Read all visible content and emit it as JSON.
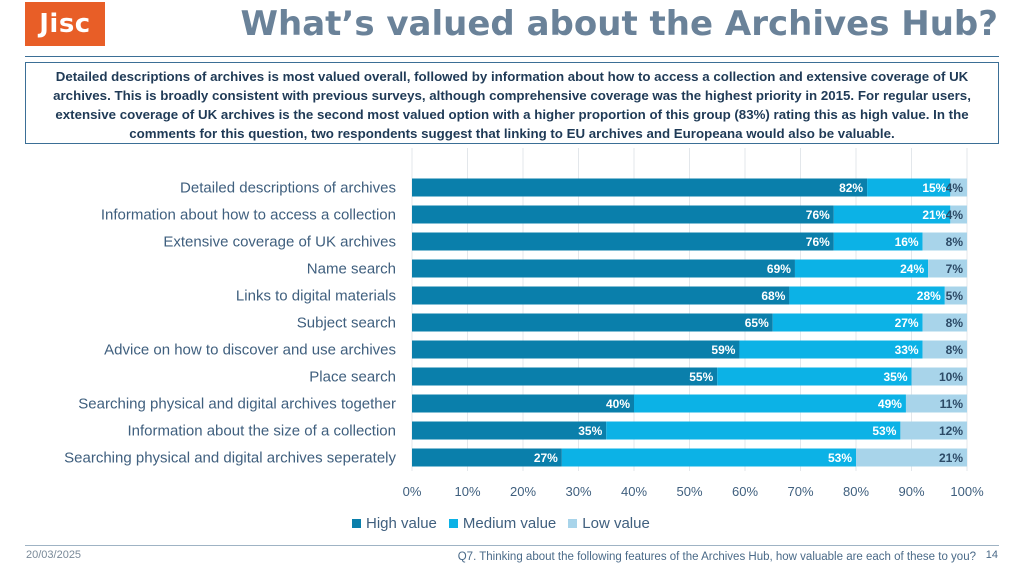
{
  "logo": {
    "text": "Jisc"
  },
  "title": "What’s valued about the Archives Hub?",
  "summary": "Detailed descriptions of archives is most valued overall, followed by information about how to access a collection and extensive coverage of UK archives.   This is broadly consistent with previous surveys, although comprehensive coverage was the highest priority in 2015.  For regular users, extensive coverage of UK archives is the second most valued option with a higher proportion of this group (83%) rating this as high value.  In the comments for this question, two respondents suggest that linking to EU archives and Europeana would also be valuable.",
  "colors": {
    "high": "#0a7fab",
    "medium": "#0cb2e6",
    "low": "#a8d4ea"
  },
  "chart_data": {
    "type": "bar",
    "orientation": "horizontal",
    "stacked": true,
    "categories": [
      "Detailed descriptions of archives",
      "Information about how to access a collection",
      "Extensive coverage of UK archives",
      "Name search",
      "Links to digital materials",
      "Subject search",
      "Advice on how to discover and use archives",
      "Place search",
      "Searching physical and digital archives together",
      "Information about the size of a collection",
      "Searching physical and digital archives seperately"
    ],
    "series": [
      {
        "name": "High value",
        "values": [
          82,
          76,
          76,
          69,
          68,
          65,
          59,
          55,
          40,
          35,
          27
        ]
      },
      {
        "name": "Medium value",
        "values": [
          15,
          21,
          16,
          24,
          28,
          27,
          33,
          35,
          49,
          53,
          53
        ]
      },
      {
        "name": "Low value",
        "values": [
          4,
          4,
          8,
          7,
          5,
          8,
          8,
          10,
          11,
          12,
          21
        ]
      }
    ],
    "xlim": [
      0,
      100
    ],
    "xticks": [
      "0%",
      "10%",
      "20%",
      "30%",
      "40%",
      "50%",
      "60%",
      "70%",
      "80%",
      "90%",
      "100%"
    ],
    "grid": true,
    "legend_position": "bottom"
  },
  "legend": {
    "high": "High value",
    "medium": "Medium value",
    "low": "Low value"
  },
  "footer": {
    "date": "20/03/2025",
    "question": "Q7. Thinking about the following features of the Archives Hub, how valuable are each of these to you?",
    "page": "14"
  }
}
